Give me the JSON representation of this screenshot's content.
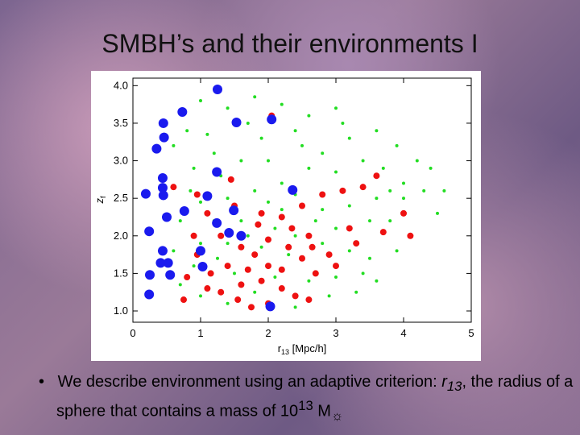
{
  "slide": {
    "title": "SMBH’s and their environments I",
    "bullet": [
      "We describe environment using an adaptive criterion: ",
      "r",
      "13",
      ", the radius of a sphere that contains a mass of 10",
      "13",
      " M",
      "☼"
    ]
  },
  "chart_data": {
    "type": "scatter",
    "xlabel": [
      "r",
      "13",
      " [Mpc/h]"
    ],
    "ylabel": [
      "z",
      "f"
    ],
    "xlim": [
      0,
      5
    ],
    "ylim": [
      0.85,
      4.1
    ],
    "xticks": [
      0,
      1,
      2,
      3,
      4,
      5
    ],
    "yticks": [
      {
        "value": 1,
        "label": "1.0"
      },
      {
        "value": 1.5,
        "label": "1.5"
      },
      {
        "value": 2,
        "label": "2.0"
      },
      {
        "value": 2.5,
        "label": "2.5"
      },
      {
        "value": 3,
        "label": "3.0"
      },
      {
        "value": 3.5,
        "label": "3.5"
      },
      {
        "value": 4,
        "label": "4.0"
      }
    ],
    "series": [
      {
        "color": "#22dd22",
        "size": 2,
        "x": [
          0.6,
          0.8,
          1.0,
          1.4,
          1.8,
          2.2,
          2.6,
          3.0,
          2.4,
          1.9,
          1.2,
          0.9,
          1.6,
          2.0,
          2.8,
          3.2,
          3.6,
          3.9,
          4.2,
          4.4,
          4.6,
          4.0,
          3.7,
          3.4,
          3.0,
          2.6,
          2.2,
          1.8,
          1.4,
          1.0,
          0.7,
          1.2,
          1.6,
          2.0,
          2.4,
          2.8,
          3.2,
          3.6,
          4.0,
          4.3,
          3.8,
          3.5,
          3.0,
          2.7,
          2.4,
          2.1,
          1.7,
          1.4,
          1.0,
          0.6,
          0.9,
          1.25,
          1.5,
          1.9,
          2.3,
          2.8,
          3.2,
          3.5,
          3.9,
          3.4,
          3.0,
          2.6,
          2.1,
          1.8,
          1.4,
          1.0,
          0.7,
          2.4,
          2.9,
          3.3,
          3.6,
          3.1,
          2.5,
          1.7,
          1.3,
          0.85,
          4.5,
          3.8,
          2.2,
          1.1
        ],
        "values": [
          3.2,
          3.4,
          3.8,
          3.7,
          3.85,
          3.75,
          3.6,
          3.7,
          3.4,
          3.3,
          3.1,
          2.9,
          3.0,
          3.0,
          3.1,
          3.3,
          3.4,
          3.2,
          3.0,
          2.9,
          2.6,
          2.7,
          2.9,
          3.0,
          2.85,
          2.9,
          2.7,
          2.6,
          2.5,
          2.45,
          2.2,
          2.2,
          2.2,
          2.45,
          2.55,
          2.35,
          2.4,
          2.5,
          2.5,
          2.6,
          2.2,
          2.2,
          2.1,
          2.2,
          2.0,
          2.1,
          2.0,
          1.9,
          1.9,
          1.8,
          1.6,
          1.7,
          1.5,
          1.85,
          1.75,
          1.9,
          1.8,
          1.7,
          1.8,
          1.5,
          1.45,
          1.4,
          1.45,
          1.25,
          1.1,
          1.2,
          1.35,
          1.05,
          1.2,
          1.25,
          1.4,
          3.5,
          3.2,
          3.5,
          2.8,
          2.6,
          2.3,
          2.6,
          2.35,
          3.35
        ]
      },
      {
        "color": "#ee1111",
        "size": 4,
        "x": [
          2.05,
          0.6,
          1.1,
          1.5,
          1.9,
          2.2,
          2.5,
          2.8,
          3.1,
          3.4,
          3.6,
          4.0,
          4.1,
          3.7,
          3.3,
          2.9,
          2.6,
          2.3,
          2.0,
          1.8,
          1.6,
          1.3,
          0.9,
          0.95,
          1.15,
          1.4,
          1.7,
          2.0,
          2.2,
          2.5,
          2.7,
          3.0,
          1.1,
          1.3,
          1.6,
          1.9,
          2.2,
          2.4,
          2.6,
          0.8,
          0.75,
          1.55,
          1.75,
          2.0,
          2.35,
          2.65,
          1.85,
          1.45,
          0.95,
          3.2
        ],
        "values": [
          3.6,
          2.65,
          2.3,
          2.4,
          2.3,
          2.25,
          2.4,
          2.55,
          2.6,
          2.65,
          2.8,
          2.3,
          2.0,
          2.05,
          1.9,
          1.75,
          2.0,
          1.85,
          1.95,
          1.75,
          1.85,
          2.0,
          2.0,
          1.75,
          1.5,
          1.6,
          1.55,
          1.6,
          1.55,
          1.7,
          1.5,
          1.6,
          1.3,
          1.25,
          1.35,
          1.4,
          1.3,
          1.2,
          1.15,
          1.45,
          1.15,
          1.15,
          1.05,
          1.1,
          2.1,
          1.85,
          2.15,
          2.75,
          2.55,
          2.1
        ]
      },
      {
        "color": "#1a1aee",
        "size": 6,
        "x": [
          1.25,
          0.73,
          0.45,
          1.53,
          2.05,
          0.46,
          0.35,
          1.24,
          0.44,
          0.44,
          0.19,
          0.45,
          1.1,
          2.36,
          0.76,
          0.5,
          1.24,
          1.49,
          1.42,
          1.6,
          0.24,
          0.44,
          1.0,
          0.41,
          0.52,
          1.03,
          0.25,
          0.55,
          0.24,
          2.03
        ],
        "values": [
          3.95,
          3.65,
          3.5,
          3.51,
          3.55,
          3.31,
          3.16,
          2.85,
          2.77,
          2.64,
          2.56,
          2.54,
          2.53,
          2.61,
          2.33,
          2.25,
          2.17,
          2.34,
          2.04,
          2.0,
          2.06,
          1.8,
          1.8,
          1.64,
          1.64,
          1.59,
          1.48,
          1.48,
          1.22,
          1.06
        ]
      }
    ]
  }
}
